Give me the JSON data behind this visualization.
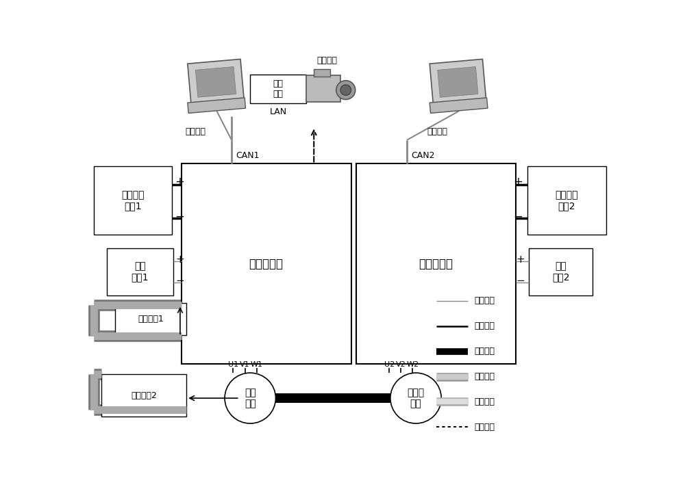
{
  "bg_color": "#ffffff",
  "labels": {
    "left_controller": "被试控制器",
    "right_controller": "测功机控制",
    "left_hv": "高压直流\n电源1",
    "right_hv": "高压直流\n电源2",
    "left_lv": "低压\n电源1",
    "right_lv": "低压\n电源2",
    "cool1": "冷却回路1",
    "cool2": "冷却回路2",
    "escort_motor": "降试\n电机",
    "test_motor": "测功机\n电机",
    "left_computer": "实时控制",
    "right_computer": "实时控制",
    "data_acq": "数据\n采集",
    "thermal_camera": "热成像仪",
    "can1": "CAN1",
    "can2": "CAN2",
    "lan": "LAN",
    "u1": "U1",
    "v1": "V1",
    "w1": "W1",
    "u2": "U2",
    "v2": "V2",
    "w2": "W2",
    "plus": "+",
    "minus": "−",
    "legend_lv": "低压连接",
    "legend_hv": "高压连接",
    "legend_mech": "机械连接",
    "legend_pipe": "管路连接",
    "legend_comm": "通信连接",
    "legend_ir": "红外采集"
  }
}
